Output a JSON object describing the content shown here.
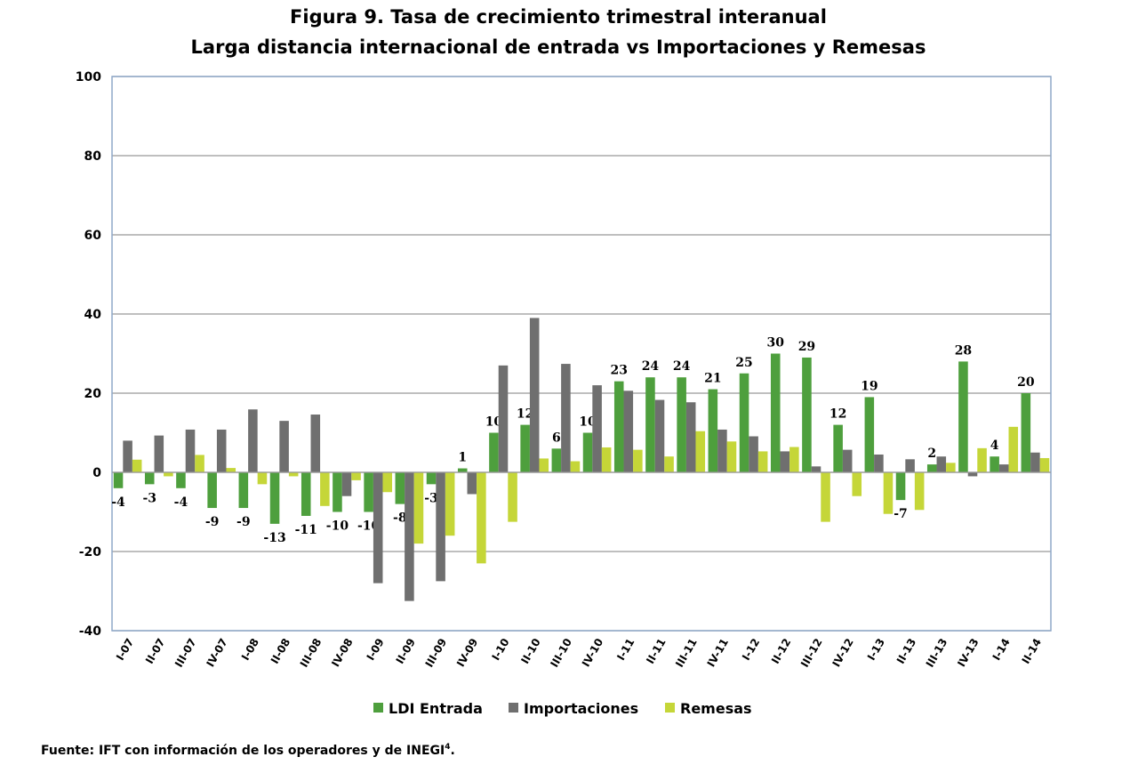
{
  "chart_data": {
    "type": "bar",
    "title": "Figura 9. Tasa de crecimiento trimestral interanual",
    "subtitle": "Larga distancia internacional de entrada vs Importaciones y Remesas",
    "categories": [
      "I-07",
      "II-07",
      "III-07",
      "IV-07",
      "I-08",
      "II-08",
      "III-08",
      "IV-08",
      "I-09",
      "II-09",
      "III-09",
      "IV-09",
      "I-10",
      "II-10",
      "III-10",
      "IV-10",
      "I-11",
      "II-11",
      "III-11",
      "IV-11",
      "I-12",
      "II-12",
      "III-12",
      "IV-12",
      "I-13",
      "II-13",
      "III-13",
      "IV-13",
      "I-14",
      "II-14"
    ],
    "series": [
      {
        "name": "LDI Entrada",
        "color": "#4e9f3d",
        "show_labels": true,
        "values": [
          -4,
          -3,
          -4,
          -9,
          -9,
          -13,
          -11,
          -10,
          -10,
          -8,
          -3,
          1,
          10,
          12,
          6,
          10,
          23,
          24,
          24,
          21,
          25,
          30,
          29,
          12,
          19,
          -7,
          2,
          28,
          4,
          20
        ]
      },
      {
        "name": "Importaciones",
        "color": "#6f6f6f",
        "show_labels": false,
        "values": [
          8,
          9.3,
          10.8,
          10.8,
          15.9,
          13,
          14.6,
          -6,
          -28,
          -32.5,
          -27.5,
          -5.5,
          27,
          39,
          27.4,
          22,
          20.6,
          18.3,
          17.7,
          10.8,
          9.1,
          5.3,
          1.5,
          5.7,
          4.5,
          3.3,
          4,
          -1,
          2,
          5
        ]
      },
      {
        "name": "Remesas",
        "color": "#c5d638",
        "show_labels": false,
        "values": [
          3.2,
          -1,
          4.4,
          1.1,
          -3,
          -1,
          -8.5,
          -2,
          -5,
          -18,
          -16,
          -23,
          -12.5,
          3.5,
          2.8,
          6.3,
          5.7,
          4,
          10.4,
          7.8,
          5.3,
          6.4,
          -12.5,
          -6,
          -10.5,
          -9.5,
          2.4,
          6.1,
          11.5,
          3.6
        ]
      }
    ],
    "ylim": [
      -40,
      100
    ],
    "yticks": [
      -40,
      -20,
      0,
      20,
      40,
      60,
      80,
      100
    ],
    "grid": true,
    "legend": "bottom"
  },
  "footnote": {
    "text": "Fuente: IFT con información de los operadores y de INEGI",
    "superscript": "4",
    "end": "."
  }
}
